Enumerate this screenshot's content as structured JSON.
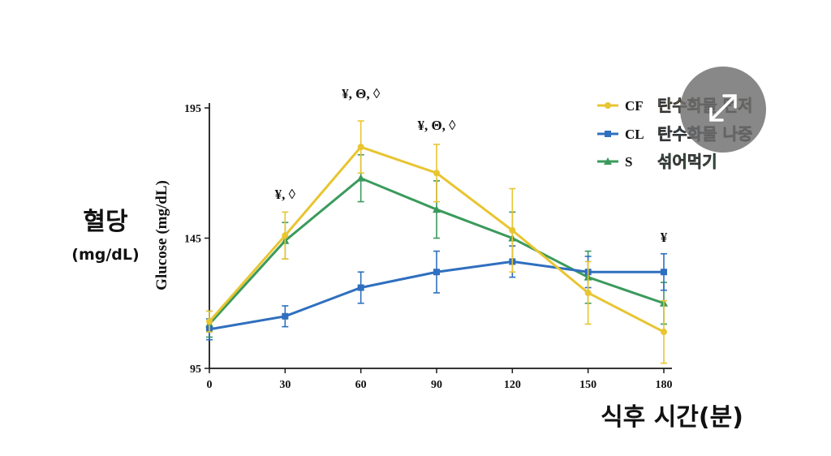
{
  "colors": {
    "CF": "#e8c531",
    "CL": "#2f6fbf",
    "S": "#3a9a5c",
    "axis": "#1a1a1a",
    "overlay": "#6e6e6e"
  },
  "overlay": {
    "icon": "expand-arrows-icon"
  },
  "chart_data": {
    "type": "line",
    "ylabel": "Glucose (mg/dL)",
    "ylabel_korean": "혈당",
    "ylabel_unit": "(mg/dL)",
    "xlabel": "식후 시간(분)",
    "x": [
      0,
      30,
      60,
      90,
      120,
      150,
      180
    ],
    "xlim": [
      0,
      180
    ],
    "ylim": [
      95,
      195
    ],
    "yticks": [
      95,
      145,
      195
    ],
    "grid": false,
    "legend_position": "top-right",
    "series": [
      {
        "name": "CF",
        "label": "탄수화물 먼저",
        "values": [
          113,
          146,
          180,
          170,
          148,
          124,
          109
        ],
        "errors": [
          4,
          9,
          10,
          11,
          16,
          12,
          12
        ],
        "marker": "circle"
      },
      {
        "name": "CL",
        "label": "탄수화물 나중",
        "values": [
          110,
          115,
          126,
          132,
          136,
          132,
          132
        ],
        "errors": [
          4,
          4,
          6,
          8,
          6,
          6,
          7
        ],
        "marker": "square"
      },
      {
        "name": "S",
        "label": "섞어먹기",
        "values": [
          112,
          144,
          168,
          156,
          145,
          130,
          120
        ],
        "errors": [
          5,
          7,
          9,
          11,
          10,
          10,
          8
        ],
        "marker": "triangle"
      }
    ],
    "annotations": [
      {
        "x": 30,
        "text": "¥, ◊"
      },
      {
        "x": 60,
        "text": "¥, Θ, ◊"
      },
      {
        "x": 90,
        "text": "¥, Θ, ◊"
      },
      {
        "x": 180,
        "text": "¥"
      }
    ]
  }
}
